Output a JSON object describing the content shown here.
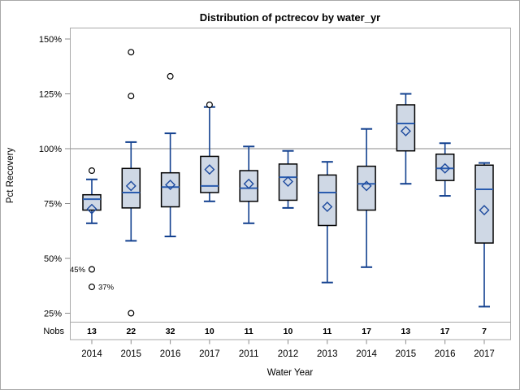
{
  "figure": {
    "title": "Distribution of pctrecov by water_yr",
    "colors": {
      "background": "#ffffff",
      "outer_border": "#a8a8a8",
      "frame_border": "#a9a9a9",
      "reference_line": "#a0a0a0",
      "tick_mark": "#8c8c8c",
      "box_fill": "#cfd8e5",
      "box_border": "#000000",
      "whisker": "#12408f",
      "median": "#2a5caf",
      "mean_marker": "#1d4a9e",
      "outlier_stroke": "#000000",
      "text": "#000000"
    }
  },
  "chart_data": {
    "type": "boxplot",
    "title": "Distribution of pctrecov by water_yr",
    "xlabel": "Water Year",
    "ylabel": "Pct Recovery",
    "ylim": [
      20,
      155
    ],
    "grid": false,
    "reference_line": 100,
    "y_ticks": [
      {
        "value": 150,
        "label": "150%"
      },
      {
        "value": 125,
        "label": "125%"
      },
      {
        "value": 100,
        "label": "100%"
      },
      {
        "value": 75,
        "label": "75%"
      },
      {
        "value": 50,
        "label": "50%"
      },
      {
        "value": 25,
        "label": "25%"
      }
    ],
    "nobs_header": "Nobs",
    "categories": [
      "2014",
      "2015",
      "2016",
      "2017",
      "2011",
      "2012",
      "2013",
      "2014",
      "2015",
      "2016",
      "2017"
    ],
    "boxes": [
      {
        "category": "2014",
        "nobs": 13,
        "whisker_low": 66,
        "q1": 72,
        "median": 77,
        "q3": 79,
        "mean": 72.5,
        "whisker_high": 86,
        "outliers": [
          90,
          45,
          37
        ]
      },
      {
        "category": "2015",
        "nobs": 22,
        "whisker_low": 58,
        "q1": 73,
        "median": 80,
        "q3": 91,
        "mean": 83,
        "whisker_high": 103,
        "outliers": [
          144,
          124,
          25
        ]
      },
      {
        "category": "2016",
        "nobs": 32,
        "whisker_low": 60,
        "q1": 73.5,
        "median": 82.5,
        "q3": 89,
        "mean": 83.5,
        "whisker_high": 107,
        "outliers": [
          133
        ]
      },
      {
        "category": "2017",
        "nobs": 10,
        "whisker_low": 76,
        "q1": 80,
        "median": 83,
        "q3": 96.5,
        "mean": 90.5,
        "whisker_high": 119,
        "outliers": [
          120
        ]
      },
      {
        "category": "2011",
        "nobs": 11,
        "whisker_low": 66,
        "q1": 76,
        "median": 82,
        "q3": 90,
        "mean": 84,
        "whisker_high": 101,
        "outliers": []
      },
      {
        "category": "2012",
        "nobs": 10,
        "whisker_low": 73,
        "q1": 76.5,
        "median": 87,
        "q3": 93,
        "mean": 85,
        "whisker_high": 99,
        "outliers": []
      },
      {
        "category": "2013",
        "nobs": 11,
        "whisker_low": 39,
        "q1": 65,
        "median": 80,
        "q3": 88,
        "mean": 73.5,
        "whisker_high": 94,
        "outliers": []
      },
      {
        "category": "2014",
        "nobs": 17,
        "whisker_low": 46,
        "q1": 72,
        "median": 84,
        "q3": 92,
        "mean": 83,
        "whisker_high": 109,
        "outliers": []
      },
      {
        "category": "2015",
        "nobs": 13,
        "whisker_low": 84,
        "q1": 99,
        "median": 111.5,
        "q3": 120,
        "mean": 108,
        "whisker_high": 125,
        "outliers": []
      },
      {
        "category": "2016",
        "nobs": 17,
        "whisker_low": 78.5,
        "q1": 85.5,
        "median": 91,
        "q3": 97.5,
        "mean": 91,
        "whisker_high": 102.5,
        "outliers": []
      },
      {
        "category": "2017",
        "nobs": 7,
        "whisker_low": 28,
        "q1": 57,
        "median": 81.5,
        "q3": 92.5,
        "mean": 72,
        "whisker_high": 93.5,
        "outliers": []
      }
    ],
    "outlier_annotations": [
      {
        "box_index": 0,
        "value": 45,
        "label": "45%",
        "side": "left"
      },
      {
        "box_index": 0,
        "value": 37,
        "label": "37%",
        "side": "right"
      }
    ]
  }
}
